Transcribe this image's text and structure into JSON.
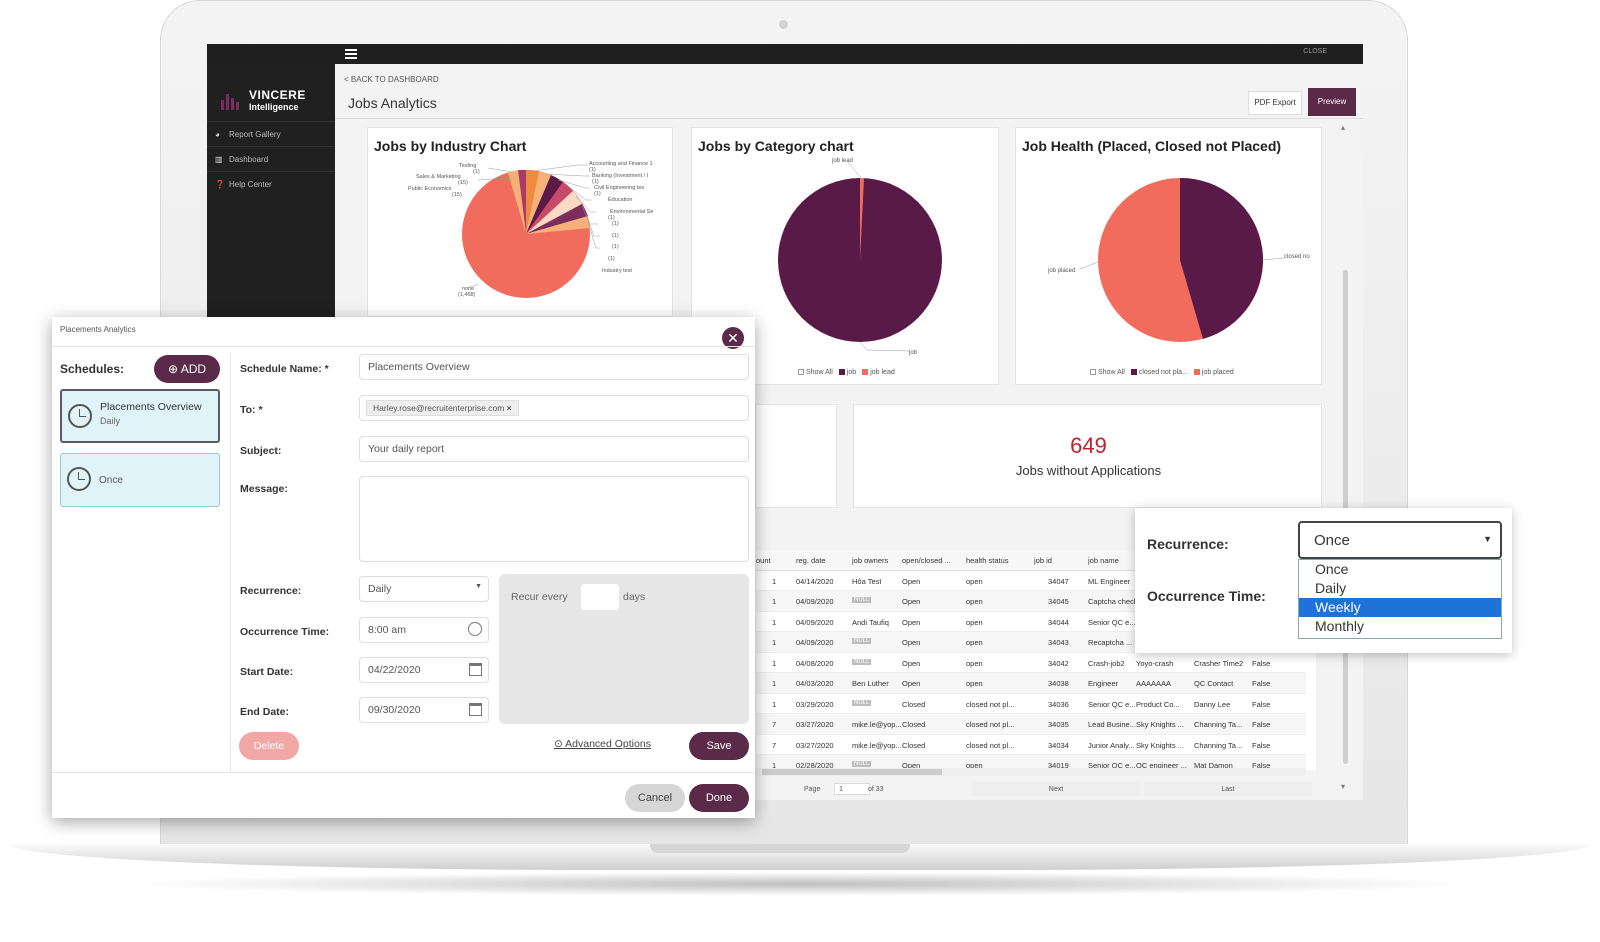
{
  "app": {
    "brand_line1": "VINCERE",
    "brand_line2": "Intelligence",
    "close": "CLOSE"
  },
  "sidebar": {
    "items": [
      {
        "icon": "pie-icon",
        "label": "Report Gallery"
      },
      {
        "icon": "bar-chart-icon",
        "label": "Dashboard"
      },
      {
        "icon": "help-icon",
        "label": "Help Center"
      }
    ]
  },
  "header": {
    "back": "< BACK TO DASHBOARD",
    "title": "Jobs Analytics",
    "pdf_export": "PDF Export",
    "preview": "Preview"
  },
  "cards": {
    "industry": {
      "title": "Jobs by Industry Chart",
      "labels_left": [
        "Testing",
        "(1)",
        "Sales & Marketing",
        "(15)",
        "Public Economics",
        "(15)"
      ],
      "labels_right": [
        "Accounting and Finance 1",
        "(1)",
        "Banking (Investment / I",
        "(1)",
        "Civil Engineering tes",
        "(1)",
        "Education",
        "Environmental Se",
        "(1)",
        "Facilities Service",
        "(1)",
        "Factory Automat",
        "(1)",
        "Food and Bevera",
        "(1)",
        "Gas & Oil",
        "(1)",
        "Industry test"
      ],
      "none_label": "none",
      "none_value": "(1,468)",
      "legend": [
        "Show All",
        "Accounting an...",
        "Banking (Inves..."
      ]
    },
    "category": {
      "title": "Jobs by Category chart",
      "label_top": "job lead",
      "label_bottom": "job",
      "legend": [
        "Show All",
        "job",
        "job lead"
      ]
    },
    "health": {
      "title": "Job Health (Placed, Closed not Placed)",
      "label_left": "job placed",
      "label_right": "closed no",
      "legend": [
        "Show All",
        "closed not pla...",
        "job placed"
      ]
    },
    "kpi": {
      "value": "649",
      "label": "Jobs without Applications"
    }
  },
  "colors": {
    "plum": "#5a1a47",
    "coral": "#f26c5e",
    "peach": "#f6b079",
    "orange": "#ef8a3e",
    "accent": "#5a2a48",
    "kpi": "#c0232b"
  },
  "table": {
    "headers": [
      "ount",
      "reg. date",
      "job owners",
      "open/closed ...",
      "health status",
      "job id",
      "job name"
    ],
    "rows": [
      [
        "1",
        "04/14/2020",
        "Hôa Test",
        "Open",
        "open",
        "34047",
        "ML Engineer",
        "",
        "",
        ""
      ],
      [
        "1",
        "04/09/2020",
        "NULL",
        "Open",
        "open",
        "34045",
        "Captcha check",
        "",
        "",
        ""
      ],
      [
        "1",
        "04/09/2020",
        "Andi Taufiq",
        "Open",
        "open",
        "34044",
        "Senior QC e...",
        "",
        "",
        ""
      ],
      [
        "1",
        "04/09/2020",
        "NULL",
        "Open",
        "open",
        "34043",
        "Recaptcha ...",
        "",
        "",
        ""
      ],
      [
        "1",
        "04/08/2020",
        "NULL",
        "Open",
        "open",
        "34042",
        "Crash-job2",
        "Yoyo-crash",
        "Crasher Time2",
        "False"
      ],
      [
        "1",
        "04/03/2020",
        "Ben Luther",
        "Open",
        "open",
        "34038",
        "Engineer",
        "AAAAAAA",
        "QC Contact",
        "False"
      ],
      [
        "1",
        "03/29/2020",
        "NULL",
        "Closed",
        "closed not pl...",
        "34036",
        "Senior QC e...",
        "Product Co...",
        "Danny Lee",
        "False"
      ],
      [
        "7",
        "03/27/2020",
        "mike.le@yop...",
        "Closed",
        "closed not pl...",
        "34035",
        "Lead Busine...",
        "Sky Knights ...",
        "Channing Ta...",
        "False"
      ],
      [
        "7",
        "03/27/2020",
        "mike.le@yop...",
        "Closed",
        "closed not pl...",
        "34034",
        "Junior Analy...",
        "Sky Knights ...",
        "Channing Ta...",
        "False"
      ],
      [
        "1",
        "02/28/2020",
        "NULL",
        "Open",
        "open",
        "34019",
        "Senior QC e...",
        "QC engineer ...",
        "Mat Damon",
        "False"
      ]
    ],
    "pager": {
      "page": "Page",
      "page_num": "1",
      "of": "of 33",
      "next": "Next",
      "last": "Last"
    }
  },
  "dialog": {
    "title": "Placements Analytics",
    "schedules_label": "Schedules:",
    "add": "ADD",
    "schedules": [
      {
        "name": "Placements Overview",
        "freq": "Daily"
      },
      {
        "name": "",
        "freq": "Once"
      }
    ],
    "schedule_name_label": "Schedule Name: *",
    "schedule_name": "Placements Overview",
    "to_label": "To: *",
    "to_chip": "Harley.rose@recruitenterprise.com",
    "subject_label": "Subject:",
    "subject": "Your daily report",
    "message_label": "Message:",
    "recurrence_label": "Recurrence:",
    "recurrence": "Daily",
    "occurrence_label": "Occurrence Time:",
    "occurrence": "8:00 am",
    "start_label": "Start Date:",
    "start": "04/22/2020",
    "end_label": "End Date:",
    "end": "09/30/2020",
    "recur_every": "Recur every",
    "days": "days",
    "delete": "Delete",
    "advanced": "Advanced Options",
    "save": "Save",
    "cancel": "Cancel",
    "done": "Done"
  },
  "dropdown": {
    "recurrence_label": "Recurrence:",
    "occurrence_label": "Occurrence Time:",
    "selected": "Once",
    "options": [
      "Once",
      "Daily",
      "Weekly",
      "Monthly"
    ],
    "highlighted": "Weekly"
  }
}
